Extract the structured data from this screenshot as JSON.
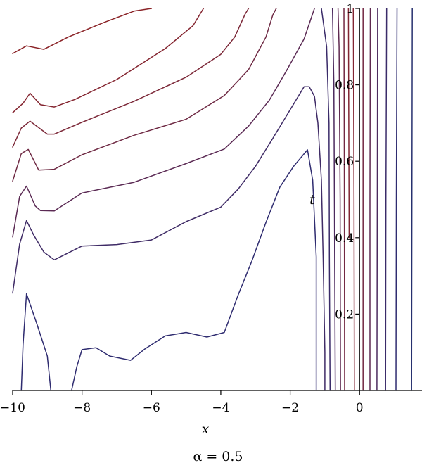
{
  "chart_data": {
    "type": "contour",
    "xlabel": "x",
    "ylabel": "t",
    "caption": "α = 0.5",
    "xlim": [
      -10,
      1.8
    ],
    "ylim": [
      0,
      1
    ],
    "x_ticks": [
      {
        "value": -10,
        "label": "−10"
      },
      {
        "value": -8,
        "label": "−8"
      },
      {
        "value": -6,
        "label": "−6"
      },
      {
        "value": -4,
        "label": "−4"
      },
      {
        "value": -2,
        "label": "−2"
      },
      {
        "value": 0,
        "label": "0"
      }
    ],
    "y_ticks": [
      {
        "value": 0.2,
        "label": "0.2"
      },
      {
        "value": 0.4,
        "label": "0.4"
      },
      {
        "value": 0.6,
        "label": "0.6"
      },
      {
        "value": 0.8,
        "label": "0.8"
      },
      {
        "value": 1.0,
        "label": "1"
      }
    ],
    "colors": {
      "low": "#1f2a7a",
      "high": "#8c1c20"
    },
    "levels": [
      {
        "level": 0,
        "color": "#8a2226",
        "points": [
          [
            -10,
            0.882
          ],
          [
            -9.6,
            0.902
          ],
          [
            -9.1,
            0.893
          ],
          [
            -8.4,
            0.925
          ],
          [
            -7.4,
            0.962
          ],
          [
            -6.5,
            0.993
          ],
          [
            -6.0,
            1.0
          ]
        ]
      },
      {
        "level": 1,
        "color": "#842530",
        "points": [
          [
            -10,
            0.727
          ],
          [
            -9.7,
            0.752
          ],
          [
            -9.5,
            0.778
          ],
          [
            -9.2,
            0.748
          ],
          [
            -8.8,
            0.742
          ],
          [
            -8.2,
            0.762
          ],
          [
            -7.0,
            0.814
          ],
          [
            -5.6,
            0.895
          ],
          [
            -4.8,
            0.955
          ],
          [
            -4.5,
            1.0
          ]
        ]
      },
      {
        "level": 2,
        "color": "#7c2838",
        "points": [
          [
            -10,
            0.637
          ],
          [
            -9.75,
            0.687
          ],
          [
            -9.5,
            0.705
          ],
          [
            -9.0,
            0.671
          ],
          [
            -8.8,
            0.671
          ],
          [
            -8.0,
            0.702
          ],
          [
            -6.5,
            0.757
          ],
          [
            -5.0,
            0.82
          ],
          [
            -4.0,
            0.88
          ],
          [
            -3.6,
            0.925
          ],
          [
            -3.3,
            0.985
          ],
          [
            -3.2,
            1.0
          ]
        ]
      },
      {
        "level": 3,
        "color": "#6f2a44",
        "points": [
          [
            -10,
            0.548
          ],
          [
            -9.75,
            0.62
          ],
          [
            -9.55,
            0.631
          ],
          [
            -9.25,
            0.577
          ],
          [
            -8.8,
            0.579
          ],
          [
            -8.0,
            0.617
          ],
          [
            -6.5,
            0.668
          ],
          [
            -5.0,
            0.71
          ],
          [
            -3.9,
            0.772
          ],
          [
            -3.2,
            0.84
          ],
          [
            -2.7,
            0.925
          ],
          [
            -2.5,
            0.983
          ],
          [
            -2.4,
            1.0
          ]
        ]
      },
      {
        "level": 4,
        "color": "#5b2a54",
        "points": [
          [
            -10,
            0.402
          ],
          [
            -9.8,
            0.508
          ],
          [
            -9.6,
            0.535
          ],
          [
            -9.35,
            0.483
          ],
          [
            -9.2,
            0.471
          ],
          [
            -8.8,
            0.47
          ],
          [
            -8.0,
            0.517
          ],
          [
            -6.5,
            0.545
          ],
          [
            -5.0,
            0.594
          ],
          [
            -3.9,
            0.632
          ],
          [
            -3.2,
            0.692
          ],
          [
            -2.6,
            0.76
          ],
          [
            -2.1,
            0.838
          ],
          [
            -1.6,
            0.92
          ],
          [
            -1.45,
            0.96
          ],
          [
            -1.3,
            1.0
          ]
        ]
      },
      {
        "level": 5,
        "color": "#3f2b66",
        "points": [
          [
            -10,
            0.255
          ],
          [
            -9.8,
            0.383
          ],
          [
            -9.6,
            0.445
          ],
          [
            -9.4,
            0.408
          ],
          [
            -9.1,
            0.362
          ],
          [
            -8.8,
            0.342
          ],
          [
            -8.0,
            0.378
          ],
          [
            -7.0,
            0.382
          ],
          [
            -6.0,
            0.394
          ],
          [
            -5.0,
            0.442
          ],
          [
            -4.0,
            0.48
          ],
          [
            -3.5,
            0.527
          ],
          [
            -3.0,
            0.587
          ],
          [
            -2.5,
            0.66
          ],
          [
            -2.0,
            0.735
          ],
          [
            -1.6,
            0.795
          ],
          [
            -1.45,
            0.795
          ],
          [
            -1.3,
            0.77
          ],
          [
            -1.2,
            0.7
          ],
          [
            -1.1,
            0.55
          ],
          [
            -1.05,
            0.35
          ],
          [
            -1.0,
            0.1
          ],
          [
            -1.0,
            0
          ]
        ]
      },
      {
        "level": 6,
        "color": "#2f2c70",
        "points": [
          [
            -9.75,
            0
          ],
          [
            -9.7,
            0.12
          ],
          [
            -9.6,
            0.253
          ],
          [
            -9.3,
            0.174
          ],
          [
            -9.0,
            0.09
          ],
          [
            -8.9,
            0
          ]
        ]
      },
      {
        "level": 6,
        "color": "#2f2c70",
        "points": [
          [
            -8.3,
            0
          ],
          [
            -8.15,
            0.062
          ],
          [
            -8.0,
            0.107
          ],
          [
            -7.6,
            0.112
          ],
          [
            -7.2,
            0.09
          ],
          [
            -6.6,
            0.079
          ],
          [
            -6.2,
            0.108
          ],
          [
            -5.6,
            0.143
          ],
          [
            -5.0,
            0.152
          ],
          [
            -4.4,
            0.14
          ],
          [
            -3.9,
            0.152
          ],
          [
            -3.5,
            0.25
          ],
          [
            -3.1,
            0.34
          ],
          [
            -2.7,
            0.44
          ],
          [
            -2.3,
            0.532
          ],
          [
            -1.9,
            0.587
          ],
          [
            -1.5,
            0.63
          ],
          [
            -1.35,
            0.55
          ],
          [
            -1.25,
            0.35
          ],
          [
            -1.25,
            0.1
          ],
          [
            -1.25,
            0
          ]
        ]
      },
      {
        "level": 5,
        "color": "#3a2b69",
        "points": [
          [
            -0.85,
            0
          ],
          [
            -0.87,
            0.35
          ],
          [
            -0.88,
            0.7
          ],
          [
            -0.95,
            0.9
          ],
          [
            -1.1,
            1.0
          ]
        ]
      },
      {
        "level": 4,
        "color": "#4c2a5e",
        "points": [
          [
            -0.7,
            0
          ],
          [
            -0.72,
            0.4
          ],
          [
            -0.74,
            0.8
          ],
          [
            -0.78,
            1.0
          ]
        ]
      },
      {
        "level": 3,
        "color": "#5f2950",
        "points": [
          [
            -0.55,
            0
          ],
          [
            -0.56,
            0.5
          ],
          [
            -0.59,
            0.9
          ],
          [
            -0.62,
            1.0
          ]
        ]
      },
      {
        "level": 2,
        "color": "#722842",
        "points": [
          [
            -0.43,
            0
          ],
          [
            -0.44,
            0.6
          ],
          [
            -0.45,
            1.0
          ]
        ]
      },
      {
        "level": 1,
        "color": "#822533",
        "points": [
          [
            -0.3,
            0.4
          ],
          [
            -0.31,
            0.7
          ],
          [
            -0.32,
            1.0
          ]
        ]
      },
      {
        "level": 1,
        "color": "#822533",
        "points": [
          [
            -0.15,
            0
          ],
          [
            -0.16,
            0.5
          ],
          [
            -0.18,
            1.0
          ]
        ]
      },
      {
        "level": 2,
        "color": "#722842",
        "points": [
          [
            0.1,
            0
          ],
          [
            0.1,
            0.5
          ],
          [
            0.1,
            1.0
          ]
        ]
      },
      {
        "level": 3,
        "color": "#5f2950",
        "points": [
          [
            0.3,
            0
          ],
          [
            0.3,
            0.5
          ],
          [
            0.31,
            1.0
          ]
        ]
      },
      {
        "level": 4,
        "color": "#4c2a5e",
        "points": [
          [
            0.5,
            0
          ],
          [
            0.51,
            0.5
          ],
          [
            0.52,
            1.0
          ]
        ]
      },
      {
        "level": 5,
        "color": "#3a2b69",
        "points": [
          [
            0.75,
            0
          ],
          [
            0.76,
            0.5
          ],
          [
            0.78,
            1.0
          ]
        ]
      },
      {
        "level": 6,
        "color": "#2f2c70",
        "points": [
          [
            1.05,
            0
          ],
          [
            1.06,
            0.5
          ],
          [
            1.08,
            1.0
          ]
        ]
      },
      {
        "level": 7,
        "color": "#26306e",
        "points": [
          [
            1.5,
            0
          ],
          [
            1.51,
            0.5
          ],
          [
            1.52,
            1.0
          ]
        ]
      }
    ]
  }
}
